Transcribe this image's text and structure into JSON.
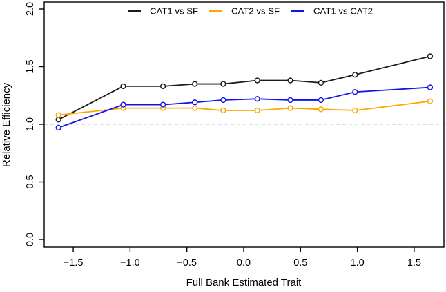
{
  "chart_data": {
    "type": "line",
    "title": "",
    "xlabel": "Full Bank Estimated Trait",
    "ylabel": "Relative Efficiency",
    "xlim": [
      -1.76,
      1.76
    ],
    "ylim": [
      -0.07,
      2.06
    ],
    "x_ticks": [
      -1.5,
      -1.0,
      -0.5,
      0.0,
      0.5,
      1.0,
      1.5
    ],
    "y_ticks": [
      0.0,
      0.5,
      1.0,
      1.5,
      2.0
    ],
    "grid": false,
    "legend_position": "top-horizontal",
    "marker": "open-circle",
    "x": [
      -1.63,
      -1.06,
      -0.71,
      -0.43,
      -0.18,
      0.12,
      0.41,
      0.68,
      0.98,
      1.64
    ],
    "series": [
      {
        "name": "CAT1 vs SF",
        "color": "#1b1b1b",
        "values": [
          1.04,
          1.33,
          1.33,
          1.35,
          1.35,
          1.38,
          1.38,
          1.36,
          1.43,
          1.59
        ]
      },
      {
        "name": "CAT2 vs SF",
        "color": "#ffa500",
        "values": [
          1.08,
          1.14,
          1.14,
          1.14,
          1.12,
          1.12,
          1.14,
          1.13,
          1.12,
          1.2
        ]
      },
      {
        "name": "CAT1 vs CAT2",
        "color": "#1212ee",
        "values": [
          0.97,
          1.17,
          1.17,
          1.19,
          1.21,
          1.22,
          1.21,
          1.21,
          1.28,
          1.32
        ]
      }
    ],
    "reference_line": {
      "y": 1.0,
      "style": "dashed",
      "color": "#c9c9c9"
    }
  }
}
